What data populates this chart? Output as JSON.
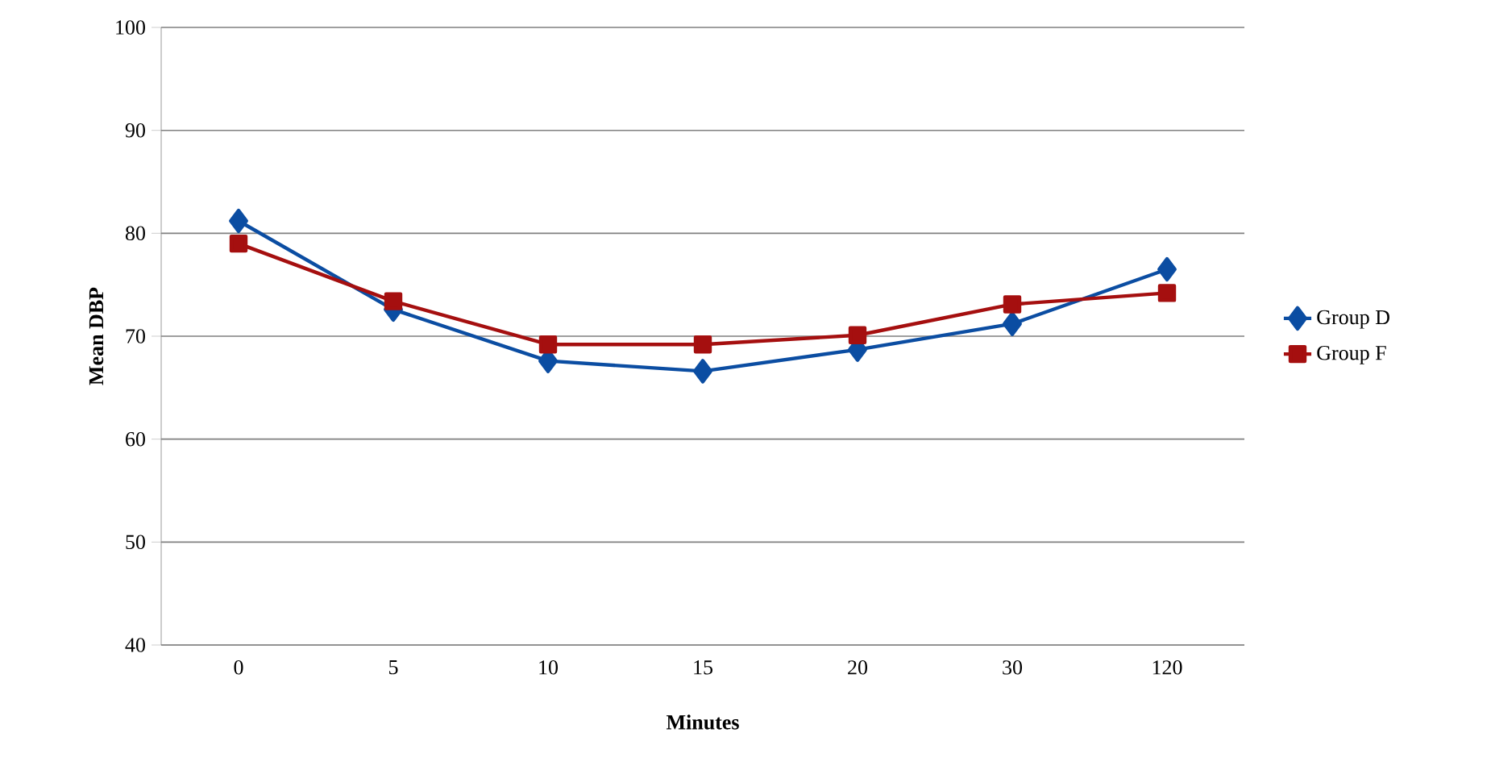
{
  "chart_data": {
    "type": "line",
    "xlabel": "Minutes",
    "ylabel": "Mean DBP",
    "categories": [
      "0",
      "5",
      "10",
      "15",
      "20",
      "30",
      "120"
    ],
    "series": [
      {
        "name": "Group D",
        "color": "#0b4da2",
        "marker": "diamond",
        "values": [
          81.2,
          72.6,
          67.6,
          66.6,
          68.7,
          71.2,
          76.5
        ]
      },
      {
        "name": "Group F",
        "color": "#a50f0f",
        "marker": "square",
        "values": [
          79.0,
          73.4,
          69.2,
          69.2,
          70.1,
          73.1,
          74.2
        ]
      }
    ],
    "ylim": [
      40,
      100
    ],
    "yticks": [
      40,
      50,
      60,
      70,
      80,
      90,
      100
    ],
    "grid": "y",
    "legend": "right",
    "line_style": "solid"
  }
}
